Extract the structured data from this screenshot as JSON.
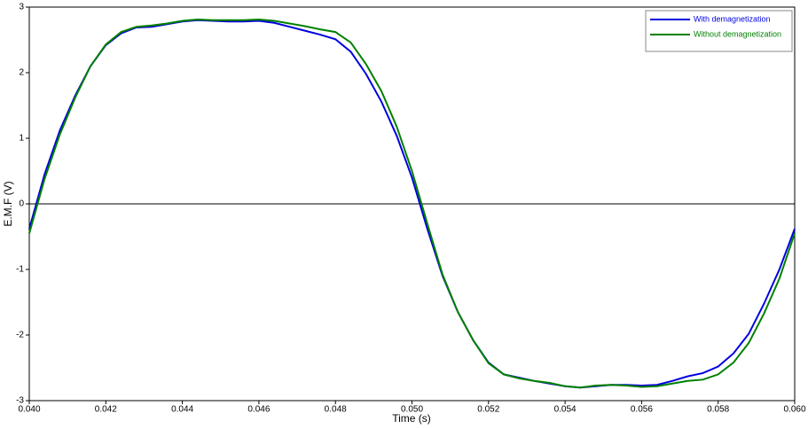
{
  "chart_data": {
    "type": "line",
    "xlabel": "Time (s)",
    "ylabel": "E.M.F (V)",
    "x": [
      0.04,
      0.0404,
      0.0408,
      0.0412,
      0.0416,
      0.042,
      0.0424,
      0.0428,
      0.0432,
      0.0436,
      0.044,
      0.0444,
      0.0448,
      0.0452,
      0.0456,
      0.046,
      0.0464,
      0.0468,
      0.0472,
      0.0476,
      0.048,
      0.0484,
      0.0488,
      0.0492,
      0.0496,
      0.05,
      0.0504,
      0.0508,
      0.0512,
      0.0516,
      0.052,
      0.0524,
      0.0528,
      0.0532,
      0.0536,
      0.054,
      0.0544,
      0.0548,
      0.0552,
      0.0556,
      0.056,
      0.0564,
      0.0568,
      0.0572,
      0.0576,
      0.058,
      0.0584,
      0.0588,
      0.0592,
      0.0596,
      0.06
    ],
    "series": [
      {
        "name": "With demagnetization",
        "color": "#0000e0",
        "values": [
          -0.38,
          0.45,
          1.12,
          1.65,
          2.1,
          2.42,
          2.6,
          2.69,
          2.7,
          2.74,
          2.78,
          2.8,
          2.79,
          2.78,
          2.78,
          2.79,
          2.76,
          2.7,
          2.64,
          2.58,
          2.51,
          2.32,
          1.98,
          1.56,
          1.04,
          0.4,
          -0.38,
          -1.1,
          -1.65,
          -2.08,
          -2.42,
          -2.6,
          -2.65,
          -2.7,
          -2.74,
          -2.78,
          -2.8,
          -2.78,
          -2.76,
          -2.76,
          -2.77,
          -2.76,
          -2.7,
          -2.63,
          -2.58,
          -2.48,
          -2.28,
          -1.98,
          -1.52,
          -1.0,
          -0.38
        ]
      },
      {
        "name": "Without demagnetization",
        "color": "#008000",
        "values": [
          -0.45,
          0.38,
          1.06,
          1.62,
          2.1,
          2.43,
          2.62,
          2.7,
          2.72,
          2.75,
          2.79,
          2.81,
          2.8,
          2.8,
          2.8,
          2.81,
          2.79,
          2.75,
          2.71,
          2.66,
          2.62,
          2.46,
          2.13,
          1.72,
          1.18,
          0.5,
          -0.3,
          -1.08,
          -1.65,
          -2.08,
          -2.43,
          -2.6,
          -2.66,
          -2.7,
          -2.73,
          -2.78,
          -2.8,
          -2.77,
          -2.76,
          -2.77,
          -2.79,
          -2.78,
          -2.74,
          -2.7,
          -2.68,
          -2.6,
          -2.42,
          -2.12,
          -1.67,
          -1.14,
          -0.45
        ]
      }
    ],
    "xlim": [
      0.04,
      0.06
    ],
    "xticks": [
      {
        "value": 0.04,
        "label": "0.040"
      },
      {
        "value": 0.042,
        "label": "0.042"
      },
      {
        "value": 0.044,
        "label": "0.044"
      },
      {
        "value": 0.046,
        "label": "0.046"
      },
      {
        "value": 0.048,
        "label": "0.048"
      },
      {
        "value": 0.05,
        "label": "0.050"
      },
      {
        "value": 0.052,
        "label": "0.052"
      },
      {
        "value": 0.054,
        "label": "0.054"
      },
      {
        "value": 0.056,
        "label": "0.056"
      },
      {
        "value": 0.058,
        "label": "0.058"
      },
      {
        "value": 0.06,
        "label": "0.060"
      }
    ],
    "ylim": [
      -3,
      3
    ],
    "yticks": [
      -3,
      -2,
      -1,
      0,
      1,
      2,
      3
    ],
    "legend": "top-right"
  }
}
